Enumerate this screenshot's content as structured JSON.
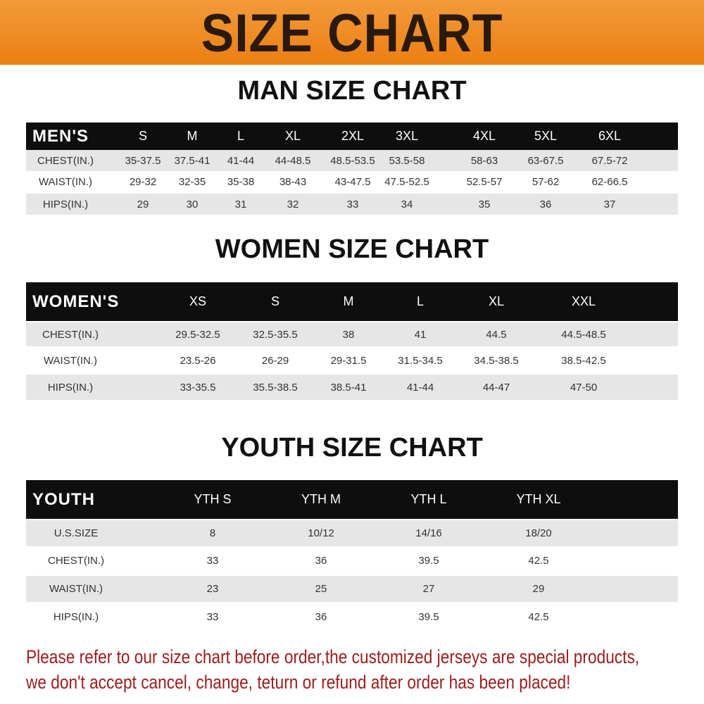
{
  "banner_title": "SIZE CHART",
  "men": {
    "title": "MAN SIZE CHART",
    "header": "MEN'S",
    "sizes": [
      "S",
      "M",
      "L",
      "XL",
      "2XL",
      "3XL",
      "4XL",
      "5XL",
      "6XL"
    ],
    "rows": [
      {
        "label": "CHEST(IN.)",
        "values": [
          "35-37.5",
          "37.5-41",
          "41-44",
          "44-48.5",
          "48.5-53.5",
          "53.5-58",
          "58-63",
          "63-67.5",
          "67.5-72"
        ]
      },
      {
        "label": "WAIST(IN.)",
        "values": [
          "29-32",
          "32-35",
          "35-38",
          "38-43",
          "43-47.5",
          "47.5-52.5",
          "52.5-57",
          "57-62",
          "62-66.5"
        ]
      },
      {
        "label": "HIPS(IN.)",
        "values": [
          "29",
          "30",
          "31",
          "32",
          "33",
          "34",
          "35",
          "36",
          "37"
        ]
      }
    ]
  },
  "women": {
    "title": "WOMEN SIZE CHART",
    "header": "WOMEN'S",
    "sizes": [
      "XS",
      "S",
      "M",
      "L",
      "XL",
      "XXL"
    ],
    "rows": [
      {
        "label": "CHEST(IN.)",
        "values": [
          "29.5-32.5",
          "32.5-35.5",
          "38",
          "41",
          "44.5",
          "44.5-48.5"
        ]
      },
      {
        "label": "WAIST(IN.)",
        "values": [
          "23.5-26",
          "26-29",
          "29-31.5",
          "31.5-34.5",
          "34.5-38.5",
          "38.5-42.5"
        ]
      },
      {
        "label": "HIPS(IN.)",
        "values": [
          "33-35.5",
          "35.5-38.5",
          "38.5-41",
          "41-44",
          "44-47",
          "47-50"
        ]
      }
    ]
  },
  "youth": {
    "title": "YOUTH SIZE CHART",
    "header": "YOUTH",
    "sizes": [
      "YTH S",
      "YTH M",
      "YTH L",
      "YTH XL"
    ],
    "rows": [
      {
        "label": "U.S.SIZE",
        "values": [
          "8",
          "10/12",
          "14/16",
          "18/20"
        ]
      },
      {
        "label": "CHEST(IN.)",
        "values": [
          "33",
          "36",
          "39.5",
          "42.5"
        ]
      },
      {
        "label": "WAIST(IN.)",
        "values": [
          "23",
          "25",
          "27",
          "29"
        ]
      },
      {
        "label": "HIPS(IN.)",
        "values": [
          "33",
          "36",
          "39.5",
          "42.5"
        ]
      }
    ]
  },
  "notice": {
    "line1": "Please refer to our size chart before order,the customized jerseys are special products,",
    "line2": "we don't accept cancel, change, teturn or refund after order has been placed!"
  },
  "colors": {
    "banner": "#ec7f12",
    "header_row": "#0e0e0e",
    "stripe": "#e6e6e6",
    "notice": "#9c1c1c"
  }
}
